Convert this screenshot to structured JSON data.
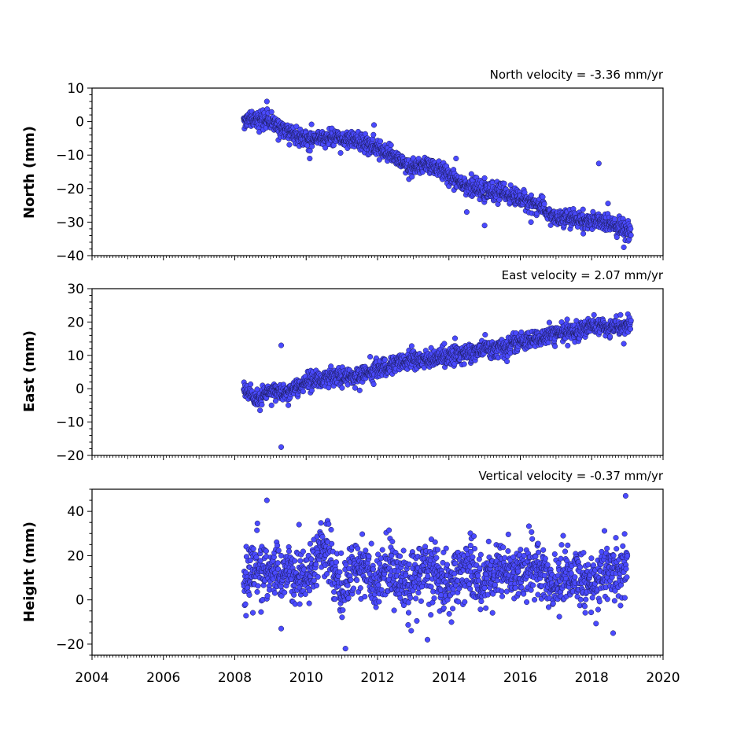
{
  "chart_data": [
    {
      "type": "scatter",
      "title": "North velocity = -3.36 mm/yr",
      "ylabel": "North (mm)",
      "xlim": [
        2004,
        2020
      ],
      "ylim": [
        -40,
        10
      ],
      "yticks": [
        10,
        0,
        -10,
        -20,
        -30,
        -40
      ],
      "velocity_mm_per_yr": -3.36,
      "series": [
        {
          "trend": [
            [
              2008.25,
              1
            ],
            [
              2009.0,
              0
            ],
            [
              2009.5,
              -3
            ],
            [
              2010.0,
              -5
            ],
            [
              2010.8,
              -5
            ],
            [
              2011.5,
              -6
            ],
            [
              2012.0,
              -8
            ],
            [
              2012.5,
              -11
            ],
            [
              2012.9,
              -14
            ],
            [
              2013.5,
              -13
            ],
            [
              2014.0,
              -16
            ],
            [
              2014.5,
              -19
            ],
            [
              2015.0,
              -21
            ],
            [
              2015.5,
              -21
            ],
            [
              2016.0,
              -23
            ],
            [
              2016.5,
              -25
            ],
            [
              2017.0,
              -29
            ],
            [
              2017.5,
              -29
            ],
            [
              2018.0,
              -30
            ],
            [
              2018.5,
              -30
            ],
            [
              2019.1,
              -33
            ]
          ],
          "outliers": [
            [
              2008.9,
              6
            ],
            [
              2011.9,
              -1
            ],
            [
              2010.1,
              -11
            ],
            [
              2014.2,
              -11
            ],
            [
              2018.2,
              -12.5
            ],
            [
              2015.0,
              -31
            ],
            [
              2014.5,
              -27
            ],
            [
              2016.3,
              -30
            ],
            [
              2018.9,
              -37.5
            ]
          ]
        }
      ]
    },
    {
      "type": "scatter",
      "title": "East velocity = 2.07 mm/yr",
      "ylabel": "East (mm)",
      "xlim": [
        2004,
        2020
      ],
      "ylim": [
        -20,
        30
      ],
      "yticks": [
        30,
        20,
        10,
        0,
        -10,
        -20
      ],
      "velocity_mm_per_yr": 2.07,
      "series": [
        {
          "trend": [
            [
              2008.25,
              0
            ],
            [
              2008.6,
              -3
            ],
            [
              2009.0,
              -1
            ],
            [
              2009.5,
              -1
            ],
            [
              2010.0,
              2
            ],
            [
              2010.5,
              3
            ],
            [
              2011.0,
              3.5
            ],
            [
              2011.5,
              4
            ],
            [
              2012.0,
              6
            ],
            [
              2012.5,
              7.5
            ],
            [
              2013.0,
              9
            ],
            [
              2013.5,
              8.5
            ],
            [
              2014.0,
              10
            ],
            [
              2014.5,
              10.5
            ],
            [
              2015.0,
              12
            ],
            [
              2015.5,
              12
            ],
            [
              2016.0,
              14
            ],
            [
              2016.5,
              15
            ],
            [
              2017.0,
              16.5
            ],
            [
              2017.5,
              17
            ],
            [
              2018.0,
              19
            ],
            [
              2018.5,
              18
            ],
            [
              2019.1,
              19
            ]
          ],
          "outliers": [
            [
              2009.3,
              13
            ],
            [
              2009.3,
              -17.5
            ],
            [
              2011.5,
              -0.5
            ],
            [
              2018.9,
              13.5
            ]
          ]
        }
      ]
    },
    {
      "type": "scatter",
      "title": "Vertical velocity = -0.37 mm/yr",
      "ylabel": "Height (mm)",
      "xlim": [
        2004,
        2020
      ],
      "ylim": [
        -25,
        50
      ],
      "yticks": [
        40,
        20,
        0,
        -20
      ],
      "velocity_mm_per_yr": -0.37,
      "series": [
        {
          "trend": [
            [
              2008.25,
              5
            ],
            [
              2008.6,
              12
            ],
            [
              2009.0,
              18
            ],
            [
              2009.4,
              6
            ],
            [
              2009.8,
              12
            ],
            [
              2010.0,
              15
            ],
            [
              2010.5,
              18
            ],
            [
              2011.0,
              10
            ],
            [
              2011.4,
              8
            ],
            [
              2011.8,
              15
            ],
            [
              2012.2,
              12
            ],
            [
              2012.6,
              6
            ],
            [
              2013.0,
              14
            ],
            [
              2013.5,
              8
            ],
            [
              2014.0,
              12
            ],
            [
              2014.5,
              9
            ],
            [
              2015.0,
              14
            ],
            [
              2015.5,
              10
            ],
            [
              2016.0,
              18
            ],
            [
              2016.5,
              8
            ],
            [
              2017.0,
              13
            ],
            [
              2017.5,
              6
            ],
            [
              2018.0,
              12
            ],
            [
              2018.5,
              8
            ],
            [
              2019.0,
              20
            ]
          ],
          "outliers": [
            [
              2008.9,
              45
            ],
            [
              2018.95,
              47
            ],
            [
              2011.1,
              -22
            ],
            [
              2013.4,
              -18
            ],
            [
              2018.6,
              -15
            ],
            [
              2009.3,
              -13
            ],
            [
              2017.2,
              29
            ],
            [
              2009.8,
              34
            ]
          ]
        }
      ]
    }
  ],
  "xticks": [
    "2004",
    "2006",
    "2008",
    "2010",
    "2012",
    "2014",
    "2016",
    "2018",
    "2020"
  ],
  "style": {
    "point_color": "#4a4aff",
    "point_edge": "#1a1a55"
  }
}
